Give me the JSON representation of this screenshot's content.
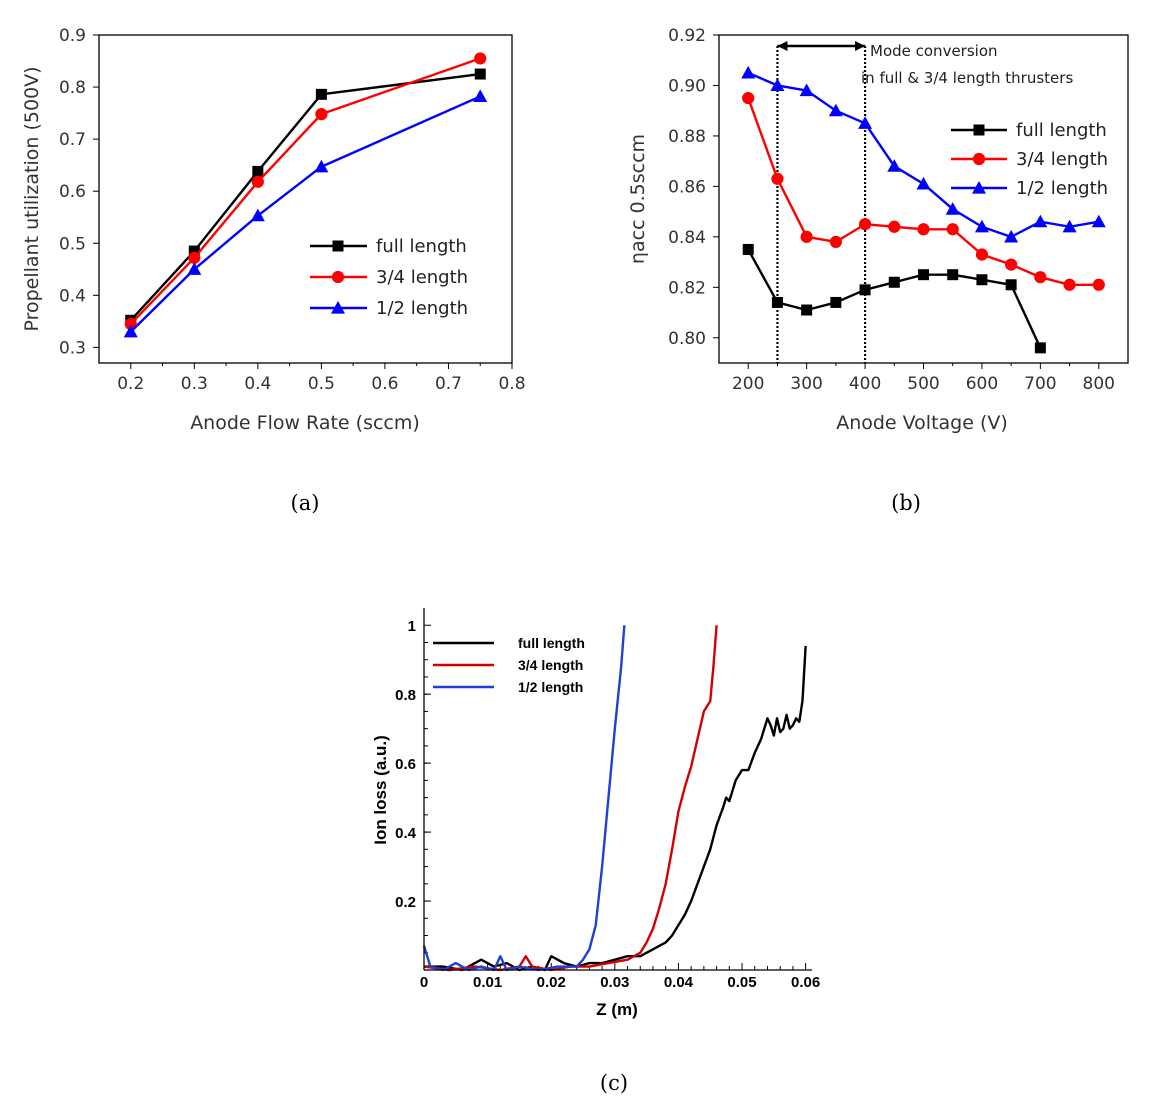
{
  "chart_data": [
    {
      "type": "line",
      "caption": "(a)",
      "xlabel": "Anode Flow Rate (sccm)",
      "ylabel": "Propellant utilization (500V)",
      "xlim": [
        0.15,
        0.8
      ],
      "ylim": [
        0.27,
        0.9
      ],
      "xticks": [
        "0.2",
        "0.3",
        "0.4",
        "0.5",
        "0.6",
        "0.7",
        "0.8"
      ],
      "yticks": [
        "0.3",
        "0.4",
        "0.5",
        "0.6",
        "0.7",
        "0.8",
        "0.9"
      ],
      "legend_position": "lower-right",
      "x": [
        0.2,
        0.3,
        0.4,
        0.5,
        0.75
      ],
      "series": [
        {
          "name": "full length",
          "color": "#000000",
          "marker": "square",
          "values": [
            0.352,
            0.485,
            0.638,
            0.786,
            0.825
          ]
        },
        {
          "name": "3/4 length",
          "color": "#ff0000",
          "marker": "circle",
          "values": [
            0.345,
            0.472,
            0.618,
            0.748,
            0.855
          ]
        },
        {
          "name": "1/2 length",
          "color": "#0000ff",
          "marker": "triangle",
          "values": [
            0.33,
            0.45,
            0.553,
            0.647,
            0.782
          ]
        }
      ]
    },
    {
      "type": "line",
      "caption": "(b)",
      "xlabel": "Anode Voltage (V)",
      "ylabel": "ηacc  0.5sccm",
      "xlim": [
        150,
        850
      ],
      "ylim": [
        0.79,
        0.92
      ],
      "xticks": [
        "200",
        "300",
        "400",
        "500",
        "600",
        "700",
        "800"
      ],
      "yticks": [
        "0.80",
        "0.82",
        "0.84",
        "0.86",
        "0.88",
        "0.90",
        "0.92"
      ],
      "legend_position": "right",
      "annotation": {
        "line1": "Mode conversion",
        "line2": "in full & 3/4 length thrusters",
        "x_range": [
          250,
          400
        ]
      },
      "series": [
        {
          "name": "full length",
          "color": "#000000",
          "marker": "square",
          "x": [
            200,
            250,
            300,
            350,
            400,
            450,
            500,
            550,
            600,
            650,
            700
          ],
          "values": [
            0.835,
            0.814,
            0.811,
            0.814,
            0.819,
            0.822,
            0.825,
            0.825,
            0.823,
            0.821,
            0.796
          ]
        },
        {
          "name": "3/4 length",
          "color": "#ff0000",
          "marker": "circle",
          "x": [
            200,
            250,
            300,
            350,
            400,
            450,
            500,
            550,
            600,
            650,
            700,
            750,
            800
          ],
          "values": [
            0.895,
            0.863,
            0.84,
            0.838,
            0.845,
            0.844,
            0.843,
            0.843,
            0.833,
            0.829,
            0.824,
            0.821,
            0.821
          ]
        },
        {
          "name": "1/2 length",
          "color": "#0000ff",
          "marker": "triangle",
          "x": [
            200,
            250,
            300,
            350,
            400,
            450,
            500,
            550,
            600,
            650,
            700,
            750,
            800
          ],
          "values": [
            0.905,
            0.9,
            0.898,
            0.89,
            0.885,
            0.868,
            0.861,
            0.851,
            0.844,
            0.84,
            0.846,
            0.844,
            0.846
          ]
        }
      ]
    },
    {
      "type": "line",
      "caption": "(c)",
      "xlabel": "Z (m)",
      "ylabel": "Ion loss (a.u.)",
      "xlim": [
        0,
        0.061
      ],
      "ylim": [
        0,
        1.05
      ],
      "xticks": [
        "0",
        "0.01",
        "0.02",
        "0.03",
        "0.04",
        "0.05",
        "0.06"
      ],
      "yticks": [
        "0.2",
        "0.4",
        "0.6",
        "0.8",
        "1"
      ],
      "legend_position": "top-left",
      "series": [
        {
          "name": "full length",
          "color": "#000000",
          "x": [
            0,
            0.003,
            0.006,
            0.008,
            0.009,
            0.011,
            0.013,
            0.015,
            0.017,
            0.019,
            0.02,
            0.022,
            0.024,
            0.026,
            0.028,
            0.03,
            0.032,
            0.034,
            0.036,
            0.038,
            0.039,
            0.04,
            0.041,
            0.042,
            0.043,
            0.044,
            0.045,
            0.046,
            0.047,
            0.0475,
            0.048,
            0.049,
            0.05,
            0.051,
            0.052,
            0.053,
            0.054,
            0.0545,
            0.055,
            0.0555,
            0.056,
            0.0565,
            0.057,
            0.0575,
            0.058,
            0.0585,
            0.059,
            0.0595,
            0.06
          ],
          "values": [
            0.01,
            0.01,
            0.0,
            0.02,
            0.03,
            0.01,
            0.02,
            0.0,
            0.01,
            0.0,
            0.04,
            0.02,
            0.01,
            0.02,
            0.02,
            0.03,
            0.04,
            0.04,
            0.06,
            0.08,
            0.1,
            0.13,
            0.16,
            0.2,
            0.25,
            0.3,
            0.35,
            0.42,
            0.47,
            0.5,
            0.49,
            0.55,
            0.58,
            0.58,
            0.63,
            0.67,
            0.73,
            0.71,
            0.68,
            0.73,
            0.69,
            0.7,
            0.74,
            0.7,
            0.71,
            0.73,
            0.72,
            0.78,
            0.94
          ]
        },
        {
          "name": "3/4 length",
          "color": "#d40000",
          "x": [
            0,
            0.004,
            0.008,
            0.012,
            0.015,
            0.016,
            0.017,
            0.02,
            0.023,
            0.026,
            0.029,
            0.032,
            0.034,
            0.035,
            0.036,
            0.037,
            0.038,
            0.039,
            0.04,
            0.041,
            0.042,
            0.043,
            0.044,
            0.045,
            0.0455,
            0.046
          ],
          "values": [
            0.01,
            0.0,
            0.01,
            0.0,
            0.01,
            0.04,
            0.01,
            0.0,
            0.01,
            0.01,
            0.02,
            0.03,
            0.05,
            0.08,
            0.12,
            0.18,
            0.25,
            0.35,
            0.46,
            0.53,
            0.59,
            0.67,
            0.75,
            0.78,
            0.88,
            1.0
          ]
        },
        {
          "name": "1/2 length",
          "color": "#1f3fd6",
          "x": [
            0,
            0.001,
            0.003,
            0.005,
            0.007,
            0.009,
            0.011,
            0.012,
            0.013,
            0.015,
            0.018,
            0.021,
            0.024,
            0.025,
            0.026,
            0.027,
            0.028,
            0.029,
            0.03,
            0.031,
            0.0315
          ],
          "values": [
            0.07,
            0.01,
            0.0,
            0.02,
            0.0,
            0.01,
            0.0,
            0.04,
            0.0,
            0.01,
            0.0,
            0.01,
            0.01,
            0.03,
            0.06,
            0.13,
            0.3,
            0.5,
            0.7,
            0.88,
            1.0
          ]
        }
      ]
    }
  ]
}
